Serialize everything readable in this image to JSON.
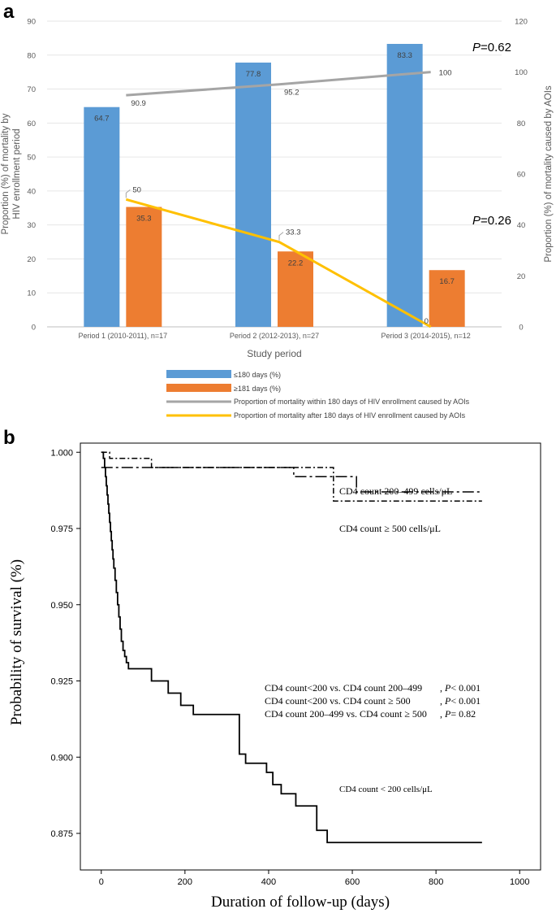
{
  "chart_data": [
    {
      "panel": "a",
      "type": "bar",
      "categories": [
        "Period 1 (2010-2011), n=17",
        "Period 2 (2012-2013), n=27",
        "Period 3 (2014-2015), n=12"
      ],
      "series": [
        {
          "name": "≤180 days (%)",
          "color": "#5b9bd5",
          "values": [
            64.7,
            77.8,
            83.3
          ],
          "labels": [
            "64.7",
            "77.8",
            "83.3"
          ]
        },
        {
          "name": "≥181 days (%)",
          "color": "#ed7d31",
          "values": [
            35.3,
            22.2,
            16.7
          ],
          "labels": [
            "35.3",
            "22.2",
            "16.7"
          ]
        }
      ],
      "lines": [
        {
          "name": "Proportion of mortality within 180 days of HIV enrollment caused by AOIs",
          "color": "#a5a5a5",
          "values": [
            90.9,
            95.2,
            100
          ],
          "labels": [
            "90.9",
            "95.2",
            "100"
          ],
          "axis": "right"
        },
        {
          "name": "Proportion of mortality after 180 days of HIV enrollment caused by AOIs",
          "color": "#ffc000",
          "values": [
            50,
            33.3,
            0
          ],
          "labels": [
            "50",
            "33.3",
            "0"
          ],
          "axis": "right"
        }
      ],
      "ylabel_left_line1": "Proportion (%) of mortality by",
      "ylabel_left_line2": "HIV enrollment period",
      "ylabel_right": "Proportion (%) of mortality caused by AOIs",
      "xlabel": "Study period",
      "ylim_left": [
        0,
        90
      ],
      "yticks_left": [
        "0",
        "10",
        "20",
        "30",
        "40",
        "50",
        "60",
        "70",
        "80",
        "90"
      ],
      "ylim_right": [
        0,
        120
      ],
      "yticks_right": [
        "0",
        "20",
        "40",
        "60",
        "80",
        "100",
        "120"
      ],
      "annotations": [
        {
          "p": "P",
          "rest": "=0.62"
        },
        {
          "p": "P",
          "rest": "=0.26"
        }
      ]
    },
    {
      "panel": "b",
      "type": "line",
      "xlabel": "Duration of follow-up (days)",
      "ylabel": "Probability of survival (%)",
      "xlim": [
        -50,
        1050
      ],
      "xticks": [
        "0",
        "200",
        "400",
        "600",
        "800",
        "1000"
      ],
      "ylim": [
        0.863,
        1.003
      ],
      "yticks": [
        "0.875",
        "0.900",
        "0.925",
        "0.950",
        "0.975",
        "1.000"
      ],
      "series": [
        {
          "name": "CD4 count < 200 cells/μL",
          "x": [
            0,
            5,
            8,
            10,
            12,
            14,
            16,
            18,
            20,
            22,
            24,
            26,
            28,
            30,
            33,
            36,
            39,
            42,
            45,
            48,
            52,
            56,
            60,
            65,
            70,
            120,
            160,
            190,
            220,
            250,
            330,
            345,
            360,
            395,
            410,
            430,
            445,
            465,
            500,
            515,
            540,
            910
          ],
          "y": [
            1.0,
            0.998,
            0.995,
            0.992,
            0.989,
            0.986,
            0.983,
            0.98,
            0.977,
            0.974,
            0.971,
            0.968,
            0.965,
            0.962,
            0.958,
            0.954,
            0.95,
            0.946,
            0.942,
            0.938,
            0.935,
            0.933,
            0.931,
            0.929,
            0.929,
            0.925,
            0.921,
            0.917,
            0.914,
            0.914,
            0.901,
            0.898,
            0.898,
            0.895,
            0.891,
            0.888,
            0.888,
            0.884,
            0.884,
            0.876,
            0.872,
            0.872
          ]
        },
        {
          "name": "CD4 count 200–499 cells/μL",
          "x": [
            0,
            460,
            610,
            910
          ],
          "y": [
            0.995,
            0.992,
            0.987,
            0.987
          ]
        },
        {
          "name": "CD4 count ≥ 500 cells/μL",
          "x": [
            0,
            20,
            120,
            555,
            910
          ],
          "y": [
            1.0,
            0.998,
            0.995,
            0.984,
            0.984
          ]
        }
      ],
      "curve_labels": [
        "CD4 count 200–499  cells/μL",
        "CD4 count ≥ 500  cells/μL",
        "CD4 count < 200  cells/μL"
      ],
      "stats": [
        {
          "comparison": "CD4 count<200 vs. CD4 count 200–499",
          "p": "P",
          "rest": "< 0.001"
        },
        {
          "comparison": "CD4 count<200 vs. CD4 count ≥ 500",
          "p": "P",
          "rest": "< 0.001"
        },
        {
          "comparison": "CD4 count 200–499 vs. CD4 count ≥ 500",
          "p": "P",
          "rest": "= 0.82"
        }
      ]
    }
  ],
  "panel_labels": {
    "a": "a",
    "b": "b"
  }
}
